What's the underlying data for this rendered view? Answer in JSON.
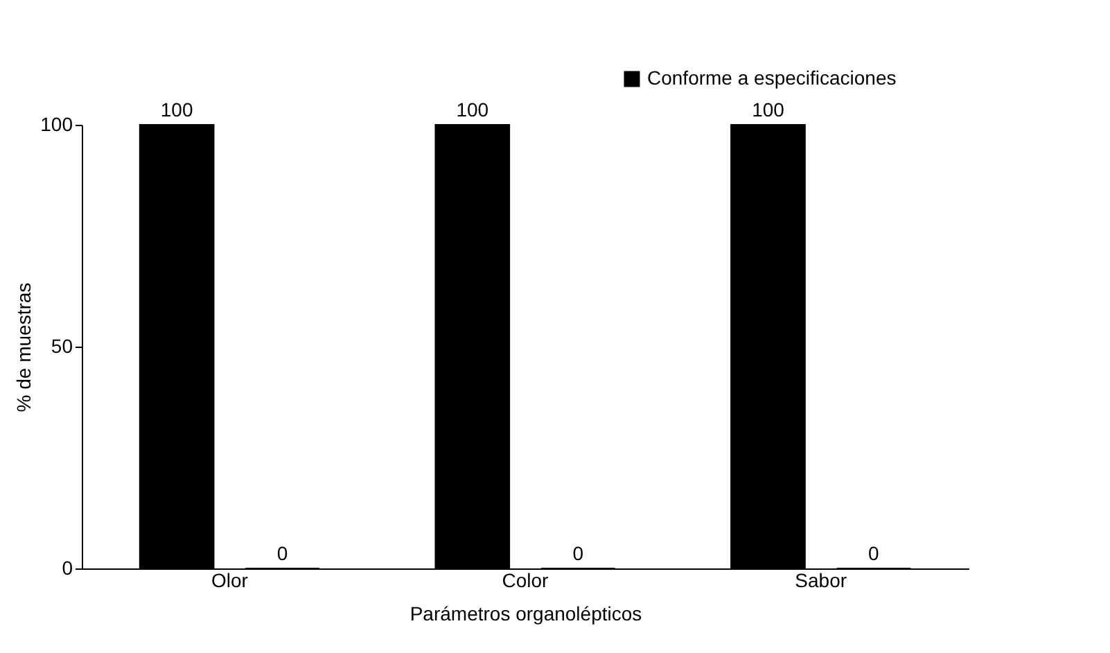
{
  "chart_data": {
    "type": "bar",
    "xlabel": "Parámetros organolépticos",
    "ylabel": "% de muestras",
    "categories": [
      "Olor",
      "Color",
      "Sabor"
    ],
    "series": [
      {
        "name": "Conforme a especificaciones",
        "color": "#000000",
        "values": [
          100,
          100,
          100
        ]
      },
      {
        "color": "#000000",
        "values": [
          0,
          0,
          0
        ]
      }
    ],
    "ylim": [
      0,
      100
    ],
    "yticks": [
      0,
      50,
      100
    ],
    "data_labels": true,
    "grid": false,
    "legend": "top right"
  }
}
